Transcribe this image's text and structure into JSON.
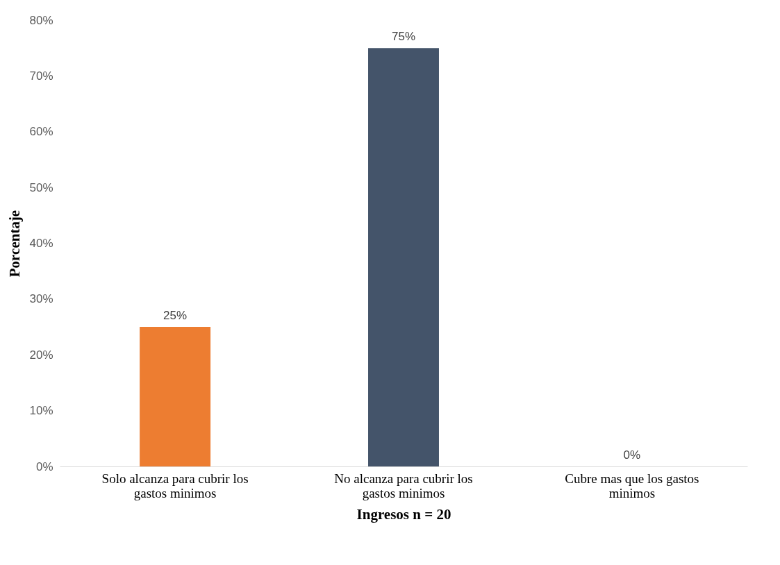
{
  "chart_data": {
    "type": "bar",
    "xlabel": "Ingresos        n = 20",
    "ylabel": "Porcentaje",
    "categories": [
      "Solo alcanza para cubrir los gastos minimos",
      "No alcanza para cubrir los gastos minimos",
      "Cubre mas que los gastos minimos"
    ],
    "values": [
      25,
      75,
      0
    ],
    "colors": [
      "#ed7d31",
      "#44546a",
      "#a5a5a5"
    ],
    "value_labels": [
      "25%",
      "75%",
      "0%"
    ],
    "ylim": [
      0,
      80
    ],
    "yticks": [
      {
        "value": 0,
        "label": "0%"
      },
      {
        "value": 10,
        "label": "10%"
      },
      {
        "value": 20,
        "label": "20%"
      },
      {
        "value": 30,
        "label": "30%"
      },
      {
        "value": 40,
        "label": "40%"
      },
      {
        "value": 50,
        "label": "50%"
      },
      {
        "value": 60,
        "label": "60%"
      },
      {
        "value": 70,
        "label": "70%"
      },
      {
        "value": 80,
        "label": "80%"
      }
    ],
    "grid": false
  }
}
